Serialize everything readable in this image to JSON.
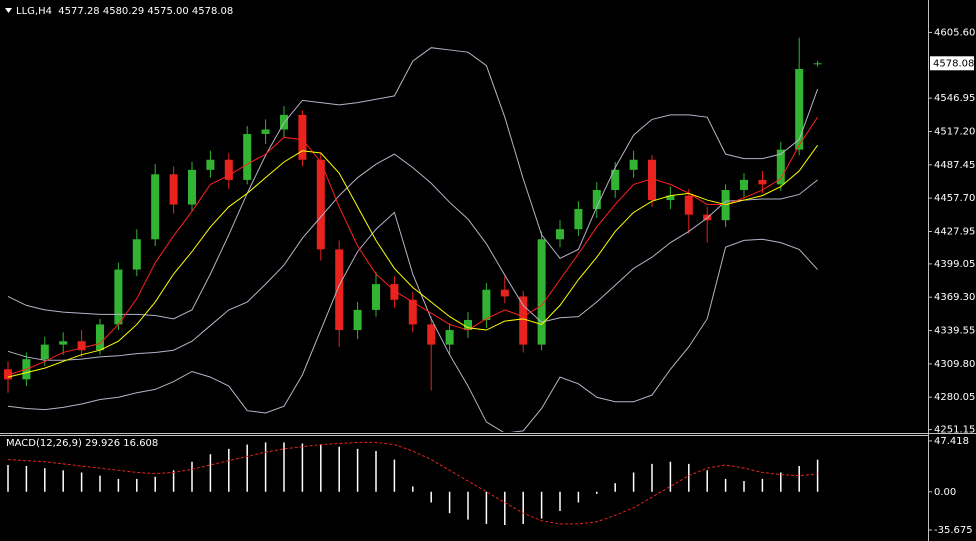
{
  "chart_data": [
    {
      "type": "candlestick",
      "title": "LLG,H4  4577.28 4580.29 4575.00 4578.08",
      "up_color": "#32b432",
      "down_color": "#e8231e",
      "open": [
        4305,
        4296,
        4314,
        4327,
        4330,
        4322,
        4345,
        4394,
        4421,
        4479,
        4452,
        4483,
        4492,
        4474,
        4515,
        4519,
        4532,
        4492,
        4412,
        4340,
        4358,
        4381,
        4367,
        4345,
        4327,
        4340,
        4349,
        4376,
        4370,
        4327,
        4421,
        4430,
        4448,
        4465,
        4483,
        4492,
        4456,
        4460,
        4443,
        4438,
        4465,
        4474,
        4470,
        4501,
        4577.28
      ],
      "high": [
        4312,
        4320,
        4334,
        4338,
        4340,
        4350,
        4400,
        4430,
        4488,
        4486,
        4490,
        4500,
        4498,
        4522,
        4528,
        4540,
        4536,
        4498,
        4420,
        4365,
        4392,
        4388,
        4374,
        4352,
        4346,
        4356,
        4382,
        4388,
        4375,
        4428,
        4438,
        4455,
        4472,
        4490,
        4500,
        4496,
        4468,
        4466,
        4450,
        4470,
        4480,
        4482,
        4508,
        4601,
        4580.29
      ],
      "low": [
        4284,
        4290,
        4308,
        4318,
        4316,
        4318,
        4340,
        4388,
        4415,
        4444,
        4446,
        4476,
        4466,
        4470,
        4506,
        4512,
        4486,
        4402,
        4325,
        4332,
        4352,
        4360,
        4338,
        4286,
        4318,
        4333,
        4342,
        4364,
        4320,
        4322,
        4414,
        4424,
        4440,
        4458,
        4476,
        4450,
        4448,
        4426,
        4418,
        4432,
        4458,
        4462,
        4464,
        4496,
        4575.0
      ],
      "close": [
        4296,
        4314,
        4327,
        4330,
        4322,
        4345,
        4394,
        4421,
        4479,
        4452,
        4483,
        4492,
        4474,
        4515,
        4519,
        4532,
        4492,
        4412,
        4340,
        4358,
        4381,
        4367,
        4345,
        4327,
        4340,
        4349,
        4376,
        4370,
        4327,
        4421,
        4430,
        4448,
        4465,
        4483,
        4492,
        4456,
        4460,
        4443,
        4438,
        4465,
        4474,
        4470,
        4501,
        4573,
        4578.08
      ],
      "overlays": [
        {
          "color": "#b4b4c8",
          "values": [
            4370,
            4362,
            4358,
            4356,
            4355,
            4354,
            4354,
            4354,
            4353,
            4350,
            4358,
            4390,
            4425,
            4462,
            4496,
            4525,
            4545,
            4543,
            4541,
            4543,
            4546,
            4549,
            4580,
            4592,
            4590,
            4588,
            4576,
            4530,
            4475,
            4425,
            4404,
            4412,
            4450,
            4485,
            4514,
            4528,
            4532,
            4532,
            4530,
            4497,
            4493,
            4493,
            4497,
            4510,
            4555
          ]
        },
        {
          "color": "#b4b4c8",
          "values": [
            4321,
            4316,
            4313,
            4313,
            4314,
            4316,
            4317,
            4319,
            4320,
            4322,
            4330,
            4344,
            4358,
            4365,
            4381,
            4398,
            4422,
            4441,
            4460,
            4476,
            4488,
            4497,
            4485,
            4471,
            4454,
            4439,
            4417,
            4389,
            4362,
            4347,
            4351,
            4352,
            4365,
            4380,
            4395,
            4405,
            4418,
            4428,
            4440,
            4455,
            4456,
            4457,
            4457,
            4461,
            4474
          ]
        },
        {
          "color": "#b4b4c8",
          "values": [
            4272,
            4270,
            4269,
            4271,
            4274,
            4278,
            4280,
            4284,
            4287,
            4294,
            4303,
            4298,
            4290,
            4268,
            4266,
            4272,
            4300,
            4340,
            4380,
            4410,
            4430,
            4445,
            4390,
            4350,
            4318,
            4290,
            4258,
            4248,
            4250,
            4270,
            4298,
            4292,
            4280,
            4276,
            4276,
            4282,
            4305,
            4325,
            4350,
            4414,
            4420,
            4421,
            4418,
            4412,
            4394
          ]
        },
        {
          "color": "#ff2020",
          "values": [
            4300,
            4305,
            4312,
            4320,
            4324,
            4328,
            4345,
            4368,
            4400,
            4424,
            4446,
            4470,
            4478,
            4488,
            4497,
            4512,
            4510,
            4490,
            4450,
            4415,
            4390,
            4375,
            4365,
            4355,
            4345,
            4340,
            4350,
            4358,
            4352,
            4362,
            4385,
            4408,
            4432,
            4452,
            4470,
            4475,
            4470,
            4462,
            4452,
            4452,
            4458,
            4465,
            4475,
            4505,
            4530
          ]
        },
        {
          "color": "#ffff00",
          "values": [
            4298,
            4302,
            4306,
            4312,
            4318,
            4322,
            4330,
            4345,
            4365,
            4390,
            4410,
            4432,
            4450,
            4462,
            4476,
            4490,
            4500,
            4498,
            4480,
            4450,
            4420,
            4395,
            4378,
            4365,
            4352,
            4342,
            4340,
            4348,
            4350,
            4345,
            4362,
            4385,
            4405,
            4428,
            4445,
            4455,
            4460,
            4462,
            4456,
            4452,
            4456,
            4460,
            4468,
            4482,
            4505
          ]
        }
      ],
      "ylim": [
        4249,
        4631
      ],
      "yticks": [
        {
          "value": 4605.6,
          "label": "4605.60"
        },
        {
          "value": 4546.95,
          "label": "4546.95"
        },
        {
          "value": 4517.2,
          "label": "4517.20"
        },
        {
          "value": 4487.45,
          "label": "4487.45"
        },
        {
          "value": 4457.7,
          "label": "4457.70"
        },
        {
          "value": 4427.95,
          "label": "4427.95"
        },
        {
          "value": 4399.05,
          "label": "4399.05"
        },
        {
          "value": 4369.3,
          "label": "4369.30"
        },
        {
          "value": 4339.55,
          "label": "4339.55"
        },
        {
          "value": 4309.8,
          "label": "4309.80"
        },
        {
          "value": 4280.05,
          "label": "4280.05"
        },
        {
          "value": 4251.15,
          "label": "4251.15"
        }
      ],
      "price_tag": {
        "value": 4578.08,
        "label": "4578.08"
      }
    },
    {
      "type": "macd",
      "title": "MACD(12,26,9) 29.926 16.608",
      "histogram": {
        "color": "#ffffff",
        "values": [
          25,
          24,
          22,
          20,
          18,
          15,
          12,
          12,
          14,
          20,
          28,
          35,
          40,
          44,
          46,
          46,
          45,
          44,
          42,
          40,
          38,
          30,
          5,
          -10,
          -20,
          -26,
          -30,
          -31,
          -30,
          -25,
          -18,
          -10,
          -2,
          8,
          18,
          26,
          28,
          26,
          20,
          12,
          10,
          12,
          18,
          24,
          29.926
        ]
      },
      "signal": {
        "color": "#e8231e",
        "values": [
          30,
          29,
          28,
          26,
          24,
          22,
          20,
          18,
          17,
          18,
          21,
          25,
          29,
          33,
          37,
          40,
          42,
          44,
          45,
          46,
          46,
          44,
          38,
          30,
          20,
          10,
          0,
          -10,
          -20,
          -27,
          -30,
          -30,
          -28,
          -22,
          -15,
          -5,
          5,
          15,
          22,
          25,
          22,
          18,
          16,
          15,
          16.608
        ]
      },
      "ylim": [
        -45,
        52
      ],
      "yticks": [
        47.418,
        {
          "value": 0,
          "label": "0.00"
        },
        -35.675
      ]
    }
  ]
}
